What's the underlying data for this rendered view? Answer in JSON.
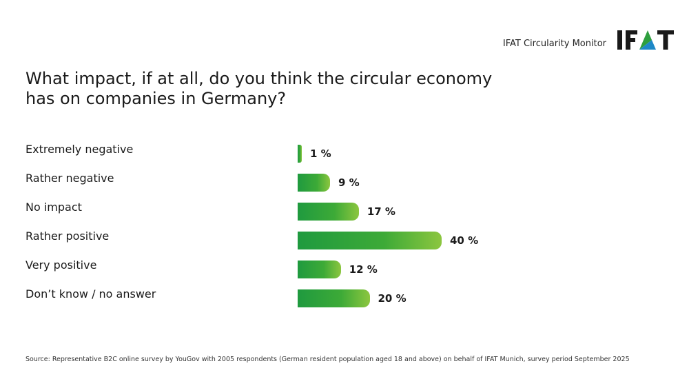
{
  "brand": {
    "monitor_label": "IFAT Circularity Monitor",
    "logo_text": "IFAT",
    "logo_colors": [
      "#1a1a1a",
      "#2e9f3e",
      "#f5a623",
      "#1e88c7"
    ]
  },
  "chart_data": {
    "type": "bar",
    "orientation": "horizontal",
    "title": "What impact, if at all, do you think the circular economy has on companies in Germany?",
    "categories": [
      "Extremely negative",
      "Rather negative",
      "No impact",
      "Rather positive",
      "Very positive",
      "Don’t know / no answer"
    ],
    "values": [
      1,
      9,
      17,
      40,
      12,
      20
    ],
    "value_labels": [
      "1 %",
      "9 %",
      "17 %",
      "40 %",
      "12 %",
      "20 %"
    ],
    "unit": "%",
    "xlim": [
      0,
      40
    ],
    "grid": false,
    "legend": "none",
    "bar_color_start": "#1f9a3f",
    "bar_color_end": "#8cc63f"
  },
  "footer": {
    "source": "Source: Representative B2C online survey by YouGov with 2005 respondents (German resident population aged 18 and above) on behalf of IFAT Munich, survey period September 2025"
  }
}
